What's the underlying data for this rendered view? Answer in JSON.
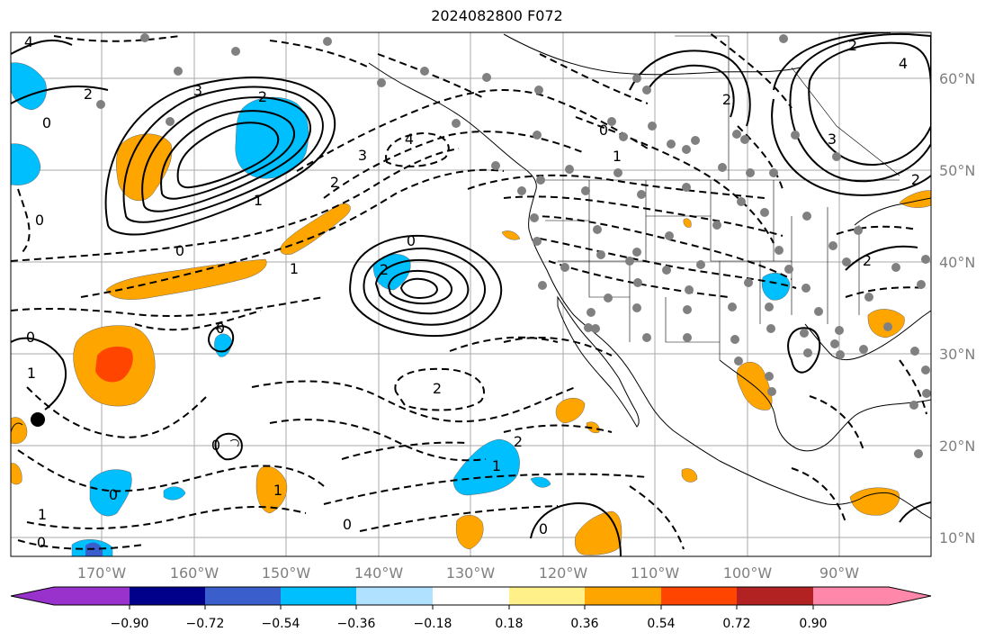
{
  "title": "2024082800 F072",
  "map": {
    "lon_labels": [
      "170°W",
      "160°W",
      "150°W",
      "140°W",
      "130°W",
      "120°W",
      "110°W",
      "100°W",
      "90°W"
    ],
    "lat_labels": [
      "60°N",
      "50°N",
      "40°N",
      "30°N",
      "20°N",
      "10°N"
    ],
    "contour_labels": [
      "4",
      "3",
      "2",
      "0",
      "2",
      "1",
      "0",
      "0",
      "4",
      "2",
      "3",
      "2",
      "1",
      "0",
      "2",
      "0",
      "2",
      "1",
      "0",
      "0",
      "0",
      "1",
      "2",
      "1",
      "0",
      "0",
      "1",
      "0",
      "1",
      "2",
      "2",
      "3",
      "4",
      "2",
      "0"
    ],
    "shading_colors": {
      "orange": "#ffa500",
      "red_orange": "#ff4500",
      "deep_sky_blue": "#00bfff",
      "royal_blue": "#3a5fcd",
      "purple": "#9932cc"
    }
  },
  "colorbar": {
    "tick_labels": [
      "−0.90",
      "−0.72",
      "−0.54",
      "−0.36",
      "−0.18",
      "0.18",
      "0.36",
      "0.54",
      "0.72",
      "0.90"
    ],
    "colors": [
      "#9932cc",
      "#00008b",
      "#3a5fcd",
      "#00bfff",
      "#b0e2ff",
      "#ffffff",
      "#fff08a",
      "#ffa500",
      "#ff4500",
      "#b22222",
      "#ff88aa"
    ]
  }
}
